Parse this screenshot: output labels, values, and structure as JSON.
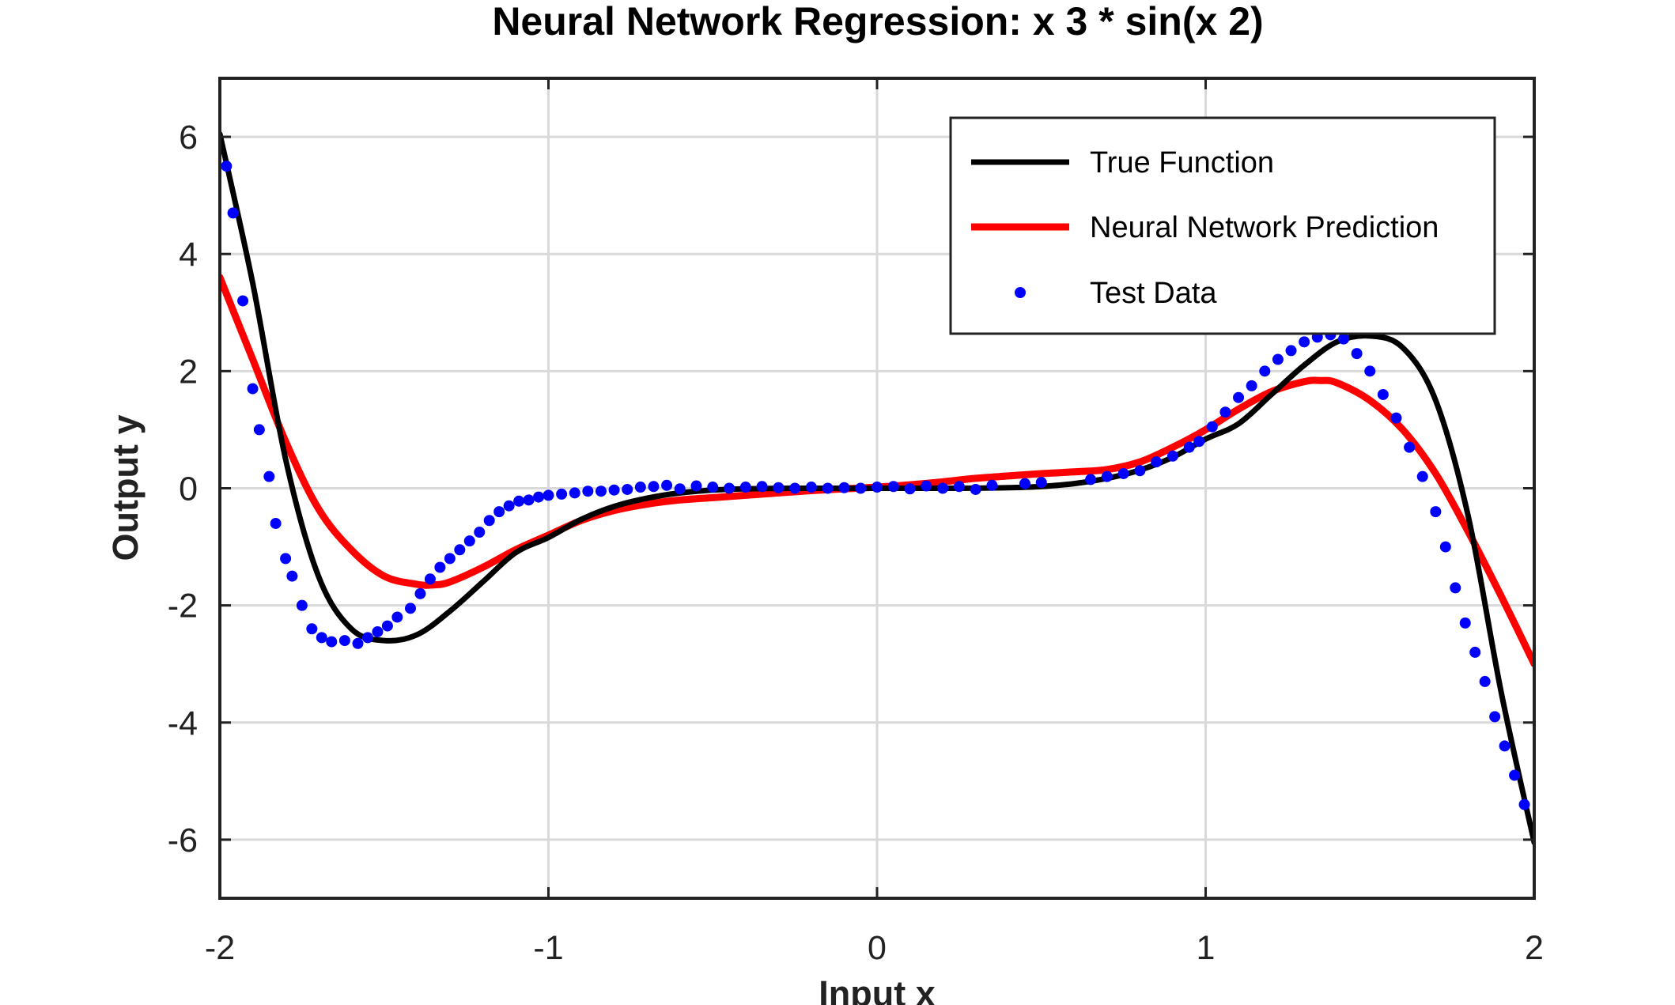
{
  "chart_data": {
    "type": "line",
    "title": "Neural Network Regression: x  3 * sin(x  2)",
    "xlabel": "Input x",
    "ylabel": "Output y",
    "xlim": [
      -2,
      2
    ],
    "ylim": [
      -7,
      7
    ],
    "xticks": [
      -2,
      -1,
      0,
      1,
      2
    ],
    "yticks": [
      -6,
      -4,
      -2,
      0,
      2,
      4,
      6
    ],
    "xtick_labels": [
      "-2",
      "-1",
      "0",
      "1",
      "2"
    ],
    "ytick_labels": [
      "-6",
      "-4",
      "-2",
      "0",
      "2",
      "4",
      "6"
    ],
    "grid": true,
    "legend_position": "top-right",
    "series": [
      {
        "name": "True Function",
        "kind": "line",
        "color": "#000000",
        "x": [
          -2.0,
          -1.9,
          -1.8,
          -1.7,
          -1.6,
          -1.5,
          -1.4,
          -1.3,
          -1.2,
          -1.1,
          -1.0,
          -0.9,
          -0.8,
          -0.7,
          -0.6,
          -0.5,
          -0.4,
          -0.3,
          -0.2,
          -0.1,
          0.0,
          0.1,
          0.2,
          0.3,
          0.4,
          0.5,
          0.6,
          0.7,
          0.8,
          0.9,
          1.0,
          1.1,
          1.2,
          1.3,
          1.4,
          1.5,
          1.6,
          1.7,
          1.8,
          1.9,
          2.0
        ],
        "y": [
          6.05,
          3.5,
          0.5,
          -1.5,
          -2.4,
          -2.6,
          -2.5,
          -2.1,
          -1.6,
          -1.1,
          -0.84,
          -0.53,
          -0.31,
          -0.17,
          -0.08,
          -0.031,
          -0.01,
          -0.002,
          0.0,
          0.0,
          0.0,
          0.0,
          0.0,
          0.002,
          0.01,
          0.031,
          0.08,
          0.17,
          0.31,
          0.53,
          0.84,
          1.1,
          1.6,
          2.1,
          2.5,
          2.6,
          2.4,
          1.5,
          -0.5,
          -3.5,
          -6.05
        ]
      },
      {
        "name": "Neural Network Prediction",
        "kind": "line",
        "color": "#ff0000",
        "x": [
          -2.0,
          -1.9,
          -1.8,
          -1.7,
          -1.6,
          -1.5,
          -1.4,
          -1.35,
          -1.3,
          -1.2,
          -1.1,
          -1.0,
          -0.9,
          -0.8,
          -0.7,
          -0.6,
          -0.5,
          -0.4,
          -0.3,
          -0.2,
          -0.1,
          0.0,
          0.1,
          0.2,
          0.3,
          0.4,
          0.5,
          0.6,
          0.7,
          0.8,
          0.9,
          1.0,
          1.1,
          1.2,
          1.3,
          1.35,
          1.4,
          1.5,
          1.6,
          1.7,
          1.8,
          1.9,
          2.0
        ],
        "y": [
          3.6,
          2.2,
          0.8,
          -0.35,
          -1.05,
          -1.5,
          -1.64,
          -1.65,
          -1.6,
          -1.35,
          -1.05,
          -0.8,
          -0.55,
          -0.38,
          -0.27,
          -0.2,
          -0.16,
          -0.12,
          -0.08,
          -0.04,
          -0.01,
          0.02,
          0.06,
          0.11,
          0.17,
          0.21,
          0.25,
          0.28,
          0.32,
          0.45,
          0.7,
          1.0,
          1.35,
          1.65,
          1.82,
          1.84,
          1.8,
          1.5,
          1.0,
          0.25,
          -0.75,
          -1.85,
          -3.0
        ]
      },
      {
        "name": "Test Data",
        "kind": "scatter",
        "color": "#0000ff",
        "x": [
          -1.98,
          -1.96,
          -1.93,
          -1.9,
          -1.88,
          -1.85,
          -1.83,
          -1.8,
          -1.78,
          -1.75,
          -1.72,
          -1.69,
          -1.66,
          -1.62,
          -1.58,
          -1.55,
          -1.52,
          -1.49,
          -1.46,
          -1.42,
          -1.39,
          -1.36,
          -1.33,
          -1.3,
          -1.27,
          -1.24,
          -1.21,
          -1.18,
          -1.15,
          -1.12,
          -1.09,
          -1.06,
          -1.03,
          -1.0,
          -0.96,
          -0.92,
          -0.88,
          -0.84,
          -0.8,
          -0.76,
          -0.72,
          -0.68,
          -0.64,
          -0.6,
          -0.55,
          -0.5,
          -0.45,
          -0.4,
          -0.35,
          -0.3,
          -0.25,
          -0.2,
          -0.15,
          -0.1,
          -0.05,
          0.0,
          0.05,
          0.1,
          0.15,
          0.2,
          0.25,
          0.3,
          0.35,
          0.45,
          0.5,
          0.65,
          0.7,
          0.75,
          0.8,
          0.85,
          0.9,
          0.95,
          0.98,
          1.02,
          1.06,
          1.1,
          1.14,
          1.18,
          1.22,
          1.26,
          1.3,
          1.34,
          1.38,
          1.42,
          1.46,
          1.5,
          1.54,
          1.58,
          1.62,
          1.66,
          1.7,
          1.73,
          1.76,
          1.79,
          1.82,
          1.85,
          1.88,
          1.91,
          1.94,
          1.97
        ],
        "y": [
          5.5,
          4.7,
          3.2,
          1.7,
          1.0,
          0.2,
          -0.6,
          -1.2,
          -1.5,
          -2.0,
          -2.4,
          -2.55,
          -2.62,
          -2.6,
          -2.65,
          -2.55,
          -2.45,
          -2.35,
          -2.2,
          -2.05,
          -1.8,
          -1.55,
          -1.35,
          -1.2,
          -1.05,
          -0.9,
          -0.75,
          -0.55,
          -0.4,
          -0.3,
          -0.22,
          -0.2,
          -0.15,
          -0.12,
          -0.1,
          -0.08,
          -0.05,
          -0.05,
          -0.03,
          -0.02,
          0.02,
          0.03,
          0.05,
          -0.01,
          0.04,
          0.02,
          0.0,
          0.02,
          0.03,
          0.01,
          0.0,
          0.02,
          0.0,
          0.01,
          0.0,
          0.02,
          0.03,
          -0.01,
          0.04,
          0.0,
          0.03,
          -0.02,
          0.05,
          0.08,
          0.1,
          0.15,
          0.2,
          0.25,
          0.3,
          0.45,
          0.55,
          0.7,
          0.8,
          1.05,
          1.3,
          1.55,
          1.75,
          2.0,
          2.2,
          2.35,
          2.5,
          2.58,
          2.62,
          2.55,
          2.3,
          2.0,
          1.6,
          1.2,
          0.7,
          0.2,
          -0.4,
          -1.0,
          -1.7,
          -2.3,
          -2.8,
          -3.3,
          -3.9,
          -4.4,
          -4.9,
          -5.4
        ],
        "marker": "dot"
      }
    ]
  }
}
